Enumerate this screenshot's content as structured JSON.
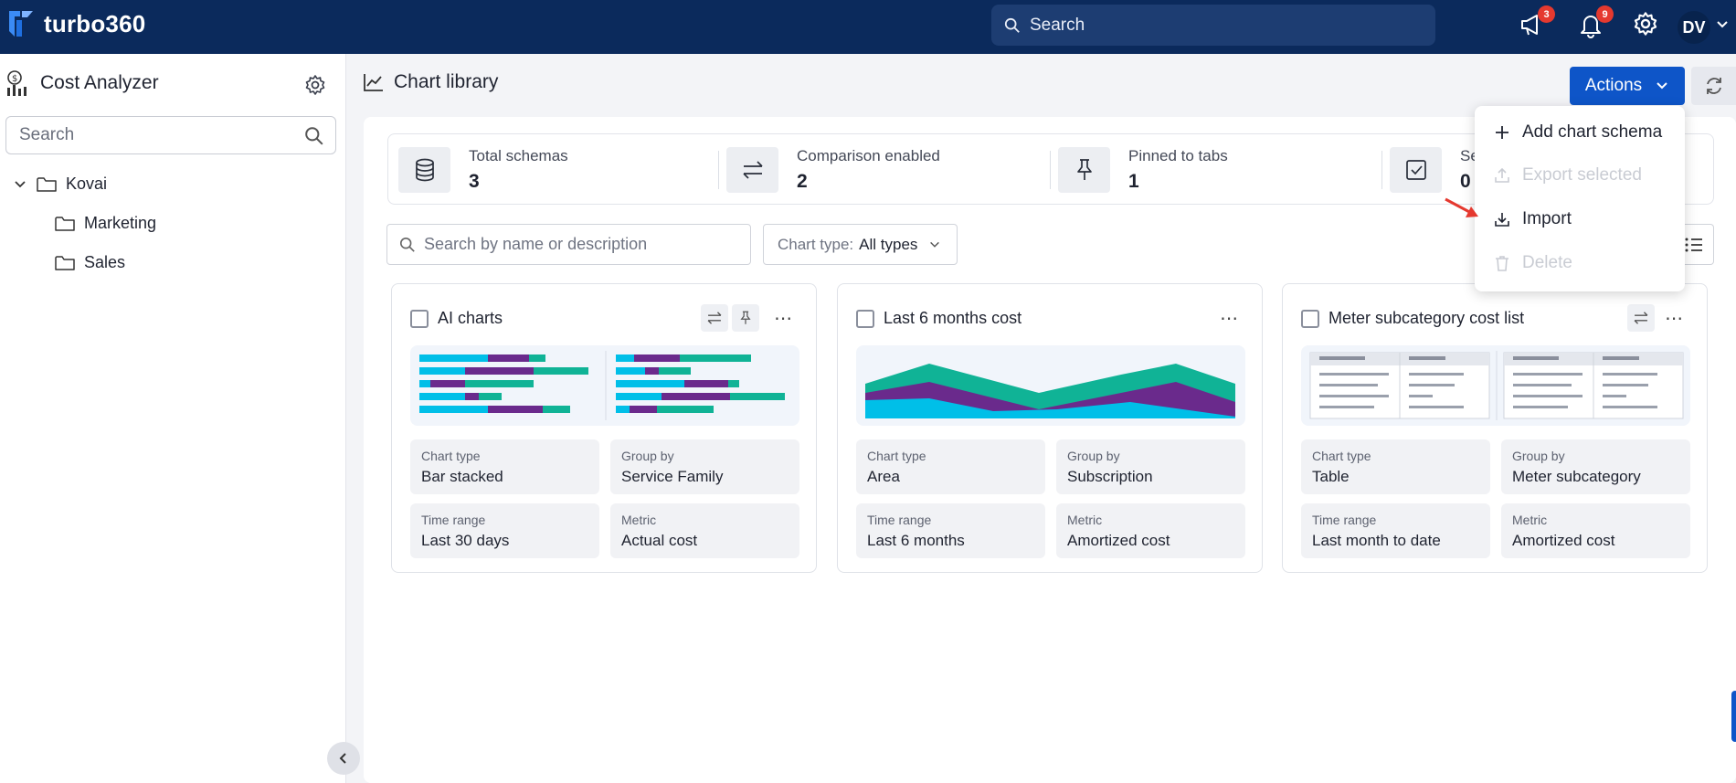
{
  "topbar": {
    "brand": "turbo360",
    "search_placeholder": "Search",
    "announcements_count": "3",
    "notifications_count": "9",
    "user_initials": "DV"
  },
  "sidebar": {
    "title": "Cost Analyzer",
    "search_placeholder": "Search",
    "tree": {
      "root": "Kovai",
      "children": [
        "Marketing",
        "Sales"
      ]
    }
  },
  "main": {
    "title": "Chart library",
    "actions_label": "Actions",
    "stats": [
      {
        "label": "Total schemas",
        "value": "3",
        "icon": "database-icon"
      },
      {
        "label": "Comparison enabled",
        "value": "2",
        "icon": "compare-arrows-icon"
      },
      {
        "label": "Pinned to tabs",
        "value": "1",
        "icon": "pin-icon"
      },
      {
        "label": "Se",
        "value": "0",
        "icon": "checkbox-checked-icon"
      }
    ],
    "filter_search_placeholder": "Search by name or description",
    "chart_type_label": "Chart type:",
    "chart_type_value": "All types",
    "cards": [
      {
        "title": "AI charts",
        "chart_type_label": "Chart type",
        "chart_type": "Bar stacked",
        "group_by_label": "Group by",
        "group_by": "Service Family",
        "time_range_label": "Time range",
        "time_range": "Last 30 days",
        "metric_label": "Metric",
        "metric": "Actual cost"
      },
      {
        "title": "Last 6 months cost",
        "chart_type_label": "Chart type",
        "chart_type": "Area",
        "group_by_label": "Group by",
        "group_by": "Subscription",
        "time_range_label": "Time range",
        "time_range": "Last 6 months",
        "metric_label": "Metric",
        "metric": "Amortized cost"
      },
      {
        "title": "Meter subcategory cost list",
        "chart_type_label": "Chart type",
        "chart_type": "Table",
        "group_by_label": "Group by",
        "group_by": "Meter subcategory",
        "time_range_label": "Time range",
        "time_range": "Last month to date",
        "metric_label": "Metric",
        "metric": "Amortized cost"
      }
    ]
  },
  "actions_menu": {
    "items": [
      {
        "label": "Add chart schema",
        "enabled": true
      },
      {
        "label": "Export selected",
        "enabled": false
      },
      {
        "label": "Import",
        "enabled": true
      },
      {
        "label": "Delete",
        "enabled": false
      }
    ]
  },
  "colors": {
    "topbar": "#0b2a5c",
    "primary": "#0e55c8",
    "cyan": "#00bfe8",
    "purple": "#6a2a8c",
    "teal": "#10b396",
    "arrow": "#e5392f"
  }
}
